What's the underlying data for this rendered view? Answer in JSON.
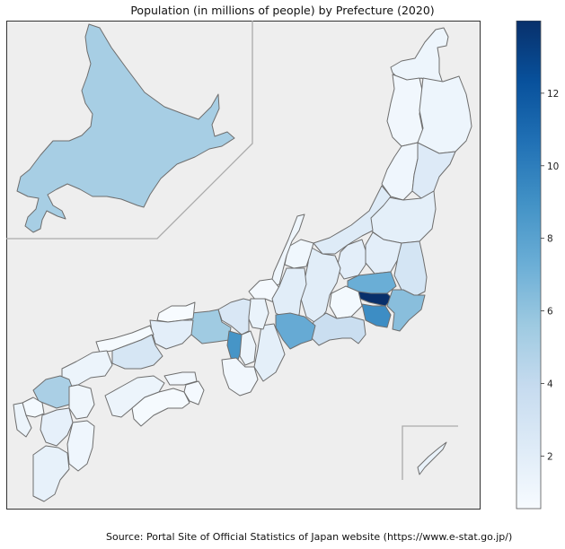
{
  "title": "Population (in millions of people) by Prefecture (2020)",
  "source": "Source: Portal Site of Official Statistics of Japan website (https://www.e-stat.go.jp/)",
  "colorbar": {
    "colormap": "Blues",
    "range": [
      0.55,
      14.0
    ],
    "ticks": [
      2,
      4,
      6,
      8,
      10,
      12
    ],
    "tick_labels": [
      "2",
      "4",
      "6",
      "8",
      "10",
      "12"
    ]
  },
  "colors": {
    "map_background": "#eeeeee",
    "border": "#6e6e6e",
    "inset_line": "#aaaaaa"
  },
  "chart_data": {
    "type": "choropleth",
    "title": "Population (in millions of people) by Prefecture (2020)",
    "value_unit": "millions of people",
    "regions": [
      {
        "name": "Hokkaido",
        "value": 5.2
      },
      {
        "name": "Aomori",
        "value": 1.2
      },
      {
        "name": "Iwate",
        "value": 1.2
      },
      {
        "name": "Akita",
        "value": 0.96
      },
      {
        "name": "Miyagi",
        "value": 2.3
      },
      {
        "name": "Yamagata",
        "value": 1.07
      },
      {
        "name": "Fukushima",
        "value": 1.8
      },
      {
        "name": "Niigata",
        "value": 2.2
      },
      {
        "name": "Ibaraki",
        "value": 2.9
      },
      {
        "name": "Tochigi",
        "value": 1.9
      },
      {
        "name": "Gunma",
        "value": 1.9
      },
      {
        "name": "Saitama",
        "value": 7.3
      },
      {
        "name": "Chiba",
        "value": 6.3
      },
      {
        "name": "Tokyo",
        "value": 14.0
      },
      {
        "name": "Kanagawa",
        "value": 9.2
      },
      {
        "name": "Yamanashi",
        "value": 0.8
      },
      {
        "name": "Nagano",
        "value": 2.0
      },
      {
        "name": "Toyama",
        "value": 1.0
      },
      {
        "name": "Ishikawa",
        "value": 1.1
      },
      {
        "name": "Fukui",
        "value": 0.77
      },
      {
        "name": "Gifu",
        "value": 2.0
      },
      {
        "name": "Shizuoka",
        "value": 3.6
      },
      {
        "name": "Aichi",
        "value": 7.5
      },
      {
        "name": "Mie",
        "value": 1.8
      },
      {
        "name": "Shiga",
        "value": 1.4
      },
      {
        "name": "Kyoto",
        "value": 2.6
      },
      {
        "name": "Osaka",
        "value": 8.8
      },
      {
        "name": "Hyogo",
        "value": 5.5
      },
      {
        "name": "Nara",
        "value": 1.3
      },
      {
        "name": "Wakayama",
        "value": 0.92
      },
      {
        "name": "Tottori",
        "value": 0.55
      },
      {
        "name": "Shimane",
        "value": 0.67
      },
      {
        "name": "Okayama",
        "value": 1.9
      },
      {
        "name": "Hiroshima",
        "value": 2.8
      },
      {
        "name": "Yamaguchi",
        "value": 1.3
      },
      {
        "name": "Tokushima",
        "value": 0.72
      },
      {
        "name": "Kagawa",
        "value": 0.95
      },
      {
        "name": "Ehime",
        "value": 1.3
      },
      {
        "name": "Kochi",
        "value": 0.69
      },
      {
        "name": "Fukuoka",
        "value": 5.1
      },
      {
        "name": "Saga",
        "value": 0.81
      },
      {
        "name": "Nagasaki",
        "value": 1.3
      },
      {
        "name": "Kumamoto",
        "value": 1.7
      },
      {
        "name": "Oita",
        "value": 1.1
      },
      {
        "name": "Miyazaki",
        "value": 1.07
      },
      {
        "name": "Kagoshima",
        "value": 1.6
      },
      {
        "name": "Okinawa",
        "value": 1.5
      }
    ]
  }
}
